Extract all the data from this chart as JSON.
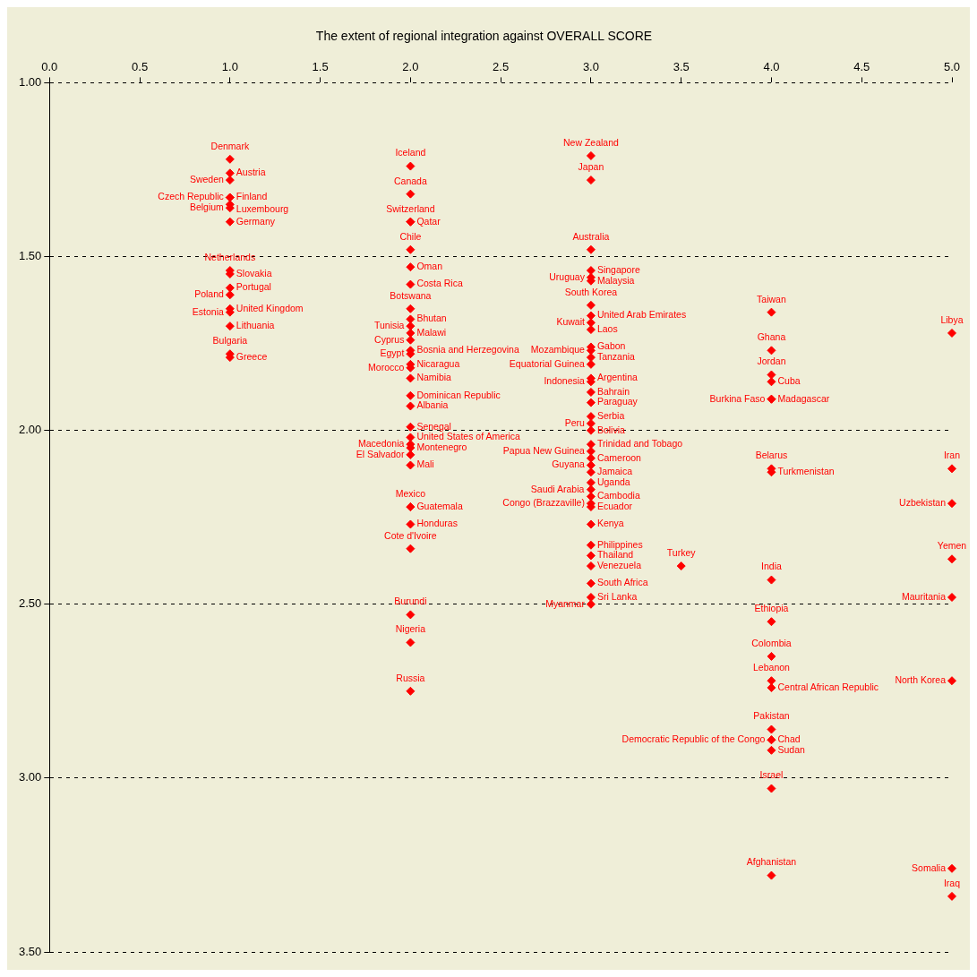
{
  "chart_data": {
    "type": "scatter",
    "title": "The extent of regional integration against OVERALL SCORE",
    "series": [
      {
        "color": "#ff0000",
        "x": [
          1,
          1,
          1,
          1,
          1,
          1,
          1,
          1,
          1,
          1,
          1,
          1,
          1,
          1,
          1,
          1,
          1,
          2,
          2,
          2,
          2,
          2,
          2,
          2,
          2,
          2,
          2,
          2,
          2,
          2,
          2,
          2,
          2,
          2,
          2,
          2,
          2,
          2,
          2,
          2,
          2,
          2,
          2,
          2,
          2,
          2,
          2,
          2,
          2,
          3,
          3,
          3,
          3,
          3,
          3,
          3,
          3,
          3,
          3,
          3,
          3,
          3,
          3,
          3,
          3,
          3,
          3,
          3,
          3,
          3,
          3,
          3,
          3,
          3,
          3,
          3,
          3,
          3,
          3,
          3,
          3,
          3,
          3,
          3,
          3,
          3,
          3,
          3.5,
          4,
          4,
          4,
          4,
          4,
          4,
          4,
          4,
          4,
          4,
          4,
          4,
          4,
          4,
          4,
          4,
          4,
          4,
          4,
          5,
          5,
          5,
          5,
          5,
          5,
          5,
          5
        ],
        "values": [
          1.22,
          1.26,
          1.28,
          1.33,
          1.33,
          1.35,
          1.36,
          1.4,
          1.54,
          1.55,
          1.59,
          1.61,
          1.65,
          1.66,
          1.7,
          1.78,
          1.79,
          1.24,
          1.32,
          1.4,
          1.4,
          1.48,
          1.53,
          1.58,
          1.65,
          1.68,
          1.7,
          1.72,
          1.74,
          1.77,
          1.78,
          1.81,
          1.82,
          1.85,
          1.9,
          1.93,
          1.99,
          2.02,
          2.04,
          2.05,
          2.07,
          2.1,
          2.22,
          2.22,
          2.27,
          2.34,
          2.53,
          2.61,
          2.75,
          1.21,
          1.28,
          1.48,
          1.54,
          1.56,
          1.57,
          1.64,
          1.67,
          1.69,
          1.71,
          1.76,
          1.77,
          1.79,
          1.81,
          1.85,
          1.86,
          1.89,
          1.92,
          1.96,
          1.98,
          2.0,
          2.04,
          2.06,
          2.08,
          2.1,
          2.12,
          2.15,
          2.17,
          2.19,
          2.21,
          2.22,
          2.27,
          2.33,
          2.36,
          2.39,
          2.44,
          2.48,
          2.5,
          2.39,
          1.66,
          1.77,
          1.84,
          1.86,
          1.91,
          1.91,
          2.11,
          2.12,
          2.43,
          2.55,
          2.65,
          2.72,
          2.74,
          2.86,
          2.89,
          2.89,
          2.92,
          3.03,
          3.28,
          1.72,
          2.11,
          2.21,
          2.37,
          2.48,
          2.72,
          3.26,
          3.34
        ]
      }
    ],
    "annotations": [
      {
        "text": "Denmark",
        "x": 1,
        "y": 1.22
      },
      {
        "text": "Austria",
        "x": 1,
        "y": 1.26
      },
      {
        "text": "Sweden",
        "x": 1,
        "y": 1.28
      },
      {
        "text": "Finland",
        "x": 1,
        "y": 1.33
      },
      {
        "text": "Czech Republic",
        "x": 1,
        "y": 1.33
      },
      {
        "text": "Luxembourg",
        "x": 1,
        "y": 1.35
      },
      {
        "text": "Belgium",
        "x": 1,
        "y": 1.36
      },
      {
        "text": "Germany",
        "x": 1,
        "y": 1.4
      },
      {
        "text": "Netherlands",
        "x": 1,
        "y": 1.54
      },
      {
        "text": "Slovakia",
        "x": 1,
        "y": 1.55
      },
      {
        "text": "Portugal",
        "x": 1,
        "y": 1.59
      },
      {
        "text": "Poland",
        "x": 1,
        "y": 1.61
      },
      {
        "text": "United Kingdom",
        "x": 1,
        "y": 1.65
      },
      {
        "text": "Estonia",
        "x": 1,
        "y": 1.66
      },
      {
        "text": "Lithuania",
        "x": 1,
        "y": 1.7
      },
      {
        "text": "Bulgaria",
        "x": 1,
        "y": 1.78
      },
      {
        "text": "Greece",
        "x": 1,
        "y": 1.79
      },
      {
        "text": "Iceland",
        "x": 2,
        "y": 1.24
      },
      {
        "text": "Canada",
        "x": 2,
        "y": 1.32
      },
      {
        "text": "Switzerland",
        "x": 2,
        "y": 1.4
      },
      {
        "text": "Qatar",
        "x": 2,
        "y": 1.4
      },
      {
        "text": "Chile",
        "x": 2,
        "y": 1.48
      },
      {
        "text": "Oman",
        "x": 2,
        "y": 1.53
      },
      {
        "text": "Costa Rica",
        "x": 2,
        "y": 1.58
      },
      {
        "text": "Botswana",
        "x": 2,
        "y": 1.65
      },
      {
        "text": "Bhutan",
        "x": 2,
        "y": 1.68
      },
      {
        "text": "Tunisia",
        "x": 2,
        "y": 1.7
      },
      {
        "text": "Malawi",
        "x": 2,
        "y": 1.72
      },
      {
        "text": "Cyprus",
        "x": 2,
        "y": 1.74
      },
      {
        "text": "Bosnia and Herzegovina",
        "x": 2,
        "y": 1.77
      },
      {
        "text": "Egypt",
        "x": 2,
        "y": 1.78
      },
      {
        "text": "Nicaragua",
        "x": 2,
        "y": 1.81
      },
      {
        "text": "Morocco",
        "x": 2,
        "y": 1.82
      },
      {
        "text": "Namibia",
        "x": 2,
        "y": 1.85
      },
      {
        "text": "Dominican Republic",
        "x": 2,
        "y": 1.9
      },
      {
        "text": "Albania",
        "x": 2,
        "y": 1.93
      },
      {
        "text": "Senegal",
        "x": 2,
        "y": 1.99
      },
      {
        "text": "United States of America",
        "x": 2,
        "y": 2.02
      },
      {
        "text": "Macedonia",
        "x": 2,
        "y": 2.04
      },
      {
        "text": "Montenegro",
        "x": 2,
        "y": 2.05
      },
      {
        "text": "El Salvador",
        "x": 2,
        "y": 2.07
      },
      {
        "text": "Mali",
        "x": 2,
        "y": 2.1
      },
      {
        "text": "Mexico",
        "x": 2,
        "y": 2.22
      },
      {
        "text": "Guatemala",
        "x": 2,
        "y": 2.22
      },
      {
        "text": "Honduras",
        "x": 2,
        "y": 2.27
      },
      {
        "text": "Cote d'Ivoire",
        "x": 2,
        "y": 2.34
      },
      {
        "text": "Burundi",
        "x": 2,
        "y": 2.53
      },
      {
        "text": "Nigeria",
        "x": 2,
        "y": 2.61
      },
      {
        "text": "Russia",
        "x": 2,
        "y": 2.75
      },
      {
        "text": "New Zealand",
        "x": 3,
        "y": 1.21
      },
      {
        "text": "Japan",
        "x": 3,
        "y": 1.28
      },
      {
        "text": "Australia",
        "x": 3,
        "y": 1.48
      },
      {
        "text": "Singapore",
        "x": 3,
        "y": 1.54
      },
      {
        "text": "Uruguay",
        "x": 3,
        "y": 1.56
      },
      {
        "text": "Malaysia",
        "x": 3,
        "y": 1.57
      },
      {
        "text": "South Korea",
        "x": 3,
        "y": 1.64
      },
      {
        "text": "United Arab Emirates",
        "x": 3,
        "y": 1.67
      },
      {
        "text": "Kuwait",
        "x": 3,
        "y": 1.69
      },
      {
        "text": "Laos",
        "x": 3,
        "y": 1.71
      },
      {
        "text": "Gabon",
        "x": 3,
        "y": 1.76
      },
      {
        "text": "Mozambique",
        "x": 3,
        "y": 1.77
      },
      {
        "text": "Tanzania",
        "x": 3,
        "y": 1.79
      },
      {
        "text": "Equatorial Guinea",
        "x": 3,
        "y": 1.81
      },
      {
        "text": "Argentina",
        "x": 3,
        "y": 1.85
      },
      {
        "text": "Indonesia",
        "x": 3,
        "y": 1.86
      },
      {
        "text": "Bahrain",
        "x": 3,
        "y": 1.89
      },
      {
        "text": "Paraguay",
        "x": 3,
        "y": 1.92
      },
      {
        "text": "Serbia",
        "x": 3,
        "y": 1.96
      },
      {
        "text": "Peru",
        "x": 3,
        "y": 1.98
      },
      {
        "text": "Bolivia",
        "x": 3,
        "y": 2.0
      },
      {
        "text": "Trinidad and Tobago",
        "x": 3,
        "y": 2.04
      },
      {
        "text": "Papua New Guinea",
        "x": 3,
        "y": 2.06
      },
      {
        "text": "Cameroon",
        "x": 3,
        "y": 2.08
      },
      {
        "text": "Guyana",
        "x": 3,
        "y": 2.1
      },
      {
        "text": "Jamaica",
        "x": 3,
        "y": 2.12
      },
      {
        "text": "Uganda",
        "x": 3,
        "y": 2.15
      },
      {
        "text": "Saudi Arabia",
        "x": 3,
        "y": 2.17
      },
      {
        "text": "Cambodia",
        "x": 3,
        "y": 2.19
      },
      {
        "text": "Congo (Brazzaville)",
        "x": 3,
        "y": 2.21
      },
      {
        "text": "Ecuador",
        "x": 3,
        "y": 2.22
      },
      {
        "text": "Kenya",
        "x": 3,
        "y": 2.27
      },
      {
        "text": "Philippines",
        "x": 3,
        "y": 2.33
      },
      {
        "text": "Thailand",
        "x": 3,
        "y": 2.36
      },
      {
        "text": "Venezuela",
        "x": 3,
        "y": 2.39
      },
      {
        "text": "South Africa",
        "x": 3,
        "y": 2.44
      },
      {
        "text": "Sri Lanka",
        "x": 3,
        "y": 2.48
      },
      {
        "text": "Myanmar",
        "x": 3,
        "y": 2.5
      },
      {
        "text": "Turkey",
        "x": 3.5,
        "y": 2.39
      },
      {
        "text": "Taiwan",
        "x": 4,
        "y": 1.66
      },
      {
        "text": "Ghana",
        "x": 4,
        "y": 1.77
      },
      {
        "text": "Jordan",
        "x": 4,
        "y": 1.84
      },
      {
        "text": "Cuba",
        "x": 4,
        "y": 1.86
      },
      {
        "text": "Madagascar",
        "x": 4,
        "y": 1.91
      },
      {
        "text": "Burkina Faso",
        "x": 4,
        "y": 1.91
      },
      {
        "text": "Belarus",
        "x": 4,
        "y": 2.11
      },
      {
        "text": "Turkmenistan",
        "x": 4,
        "y": 2.12
      },
      {
        "text": "India",
        "x": 4,
        "y": 2.43
      },
      {
        "text": "Ethiopia",
        "x": 4,
        "y": 2.55
      },
      {
        "text": "Colombia",
        "x": 4,
        "y": 2.65
      },
      {
        "text": "Lebanon",
        "x": 4,
        "y": 2.72
      },
      {
        "text": "Central African Republic",
        "x": 4,
        "y": 2.74
      },
      {
        "text": "Pakistan",
        "x": 4,
        "y": 2.86
      },
      {
        "text": "Chad",
        "x": 4,
        "y": 2.89
      },
      {
        "text": "Democratic Republic of the Congo",
        "x": 4,
        "y": 2.89
      },
      {
        "text": "Sudan",
        "x": 4,
        "y": 2.92
      },
      {
        "text": "Israel",
        "x": 4,
        "y": 3.03
      },
      {
        "text": "Afghanistan",
        "x": 4,
        "y": 3.28
      },
      {
        "text": "Libya",
        "x": 5,
        "y": 1.72
      },
      {
        "text": "Iran",
        "x": 5,
        "y": 2.11
      },
      {
        "text": "Uzbekistan",
        "x": 5,
        "y": 2.21
      },
      {
        "text": "Yemen",
        "x": 5,
        "y": 2.37
      },
      {
        "text": "Mauritania",
        "x": 5,
        "y": 2.48
      },
      {
        "text": "North Korea",
        "x": 5,
        "y": 2.72
      },
      {
        "text": "Somalia",
        "x": 5,
        "y": 3.26
      },
      {
        "text": "Iraq",
        "x": 5,
        "y": 3.34
      }
    ],
    "xlim": [
      0,
      5
    ],
    "xticks": [
      {
        "value": 0,
        "label": "0.0"
      },
      {
        "value": 0.5,
        "label": "0.5"
      },
      {
        "value": 1,
        "label": "1.0"
      },
      {
        "value": 1.5,
        "label": "1.5"
      },
      {
        "value": 2,
        "label": "2.0"
      },
      {
        "value": 2.5,
        "label": "2.5"
      },
      {
        "value": 3,
        "label": "3.0"
      },
      {
        "value": 3.5,
        "label": "3.5"
      },
      {
        "value": 4,
        "label": "4.0"
      },
      {
        "value": 4.5,
        "label": "4.5"
      },
      {
        "value": 5,
        "label": "5.0"
      }
    ],
    "ylim": [
      3.5,
      1
    ],
    "yticks": [
      {
        "value": 1,
        "label": "1.00"
      },
      {
        "value": 1.5,
        "label": "1.50"
      },
      {
        "value": 2,
        "label": "2.00"
      },
      {
        "value": 2.5,
        "label": "2.50"
      },
      {
        "value": 3,
        "label": "3.00"
      },
      {
        "value": 3.5,
        "label": "3.50"
      }
    ],
    "grid": "y",
    "marker": "diamond",
    "legend": false
  }
}
